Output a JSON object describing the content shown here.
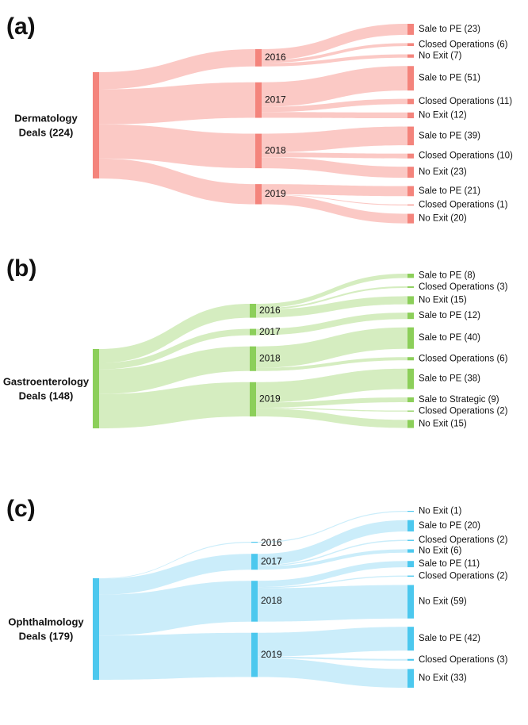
{
  "chart_data": [
    {
      "type": "sankey",
      "panel": "(a)",
      "source_line1": "Dermatology",
      "source_line2": "Deals (224)",
      "source_value": 224,
      "colors": {
        "node": "#f4847c",
        "link": "#fbc6c2"
      },
      "years": [
        {
          "label": "2016",
          "value": 36,
          "outcomes": [
            {
              "label": "Sale to PE (23)",
              "value": 23
            },
            {
              "label": "Closed Operations (6)",
              "value": 6
            },
            {
              "label": "No Exit (7)",
              "value": 7
            }
          ]
        },
        {
          "label": "2017",
          "value": 74,
          "outcomes": [
            {
              "label": "Sale to PE (51)",
              "value": 51
            },
            {
              "label": "Closed Operations (11)",
              "value": 11
            },
            {
              "label": "No Exit (12)",
              "value": 12
            }
          ]
        },
        {
          "label": "2018",
          "value": 72,
          "outcomes": [
            {
              "label": "Sale to PE (39)",
              "value": 39
            },
            {
              "label": "Closed Operations (10)",
              "value": 10
            },
            {
              "label": "No Exit (23)",
              "value": 23
            }
          ]
        },
        {
          "label": "2019",
          "value": 42,
          "outcomes": [
            {
              "label": "Sale to PE (21)",
              "value": 21
            },
            {
              "label": "Closed Operations (1)",
              "value": 1
            },
            {
              "label": "No Exit (20)",
              "value": 20
            }
          ]
        }
      ]
    },
    {
      "type": "sankey",
      "panel": "(b)",
      "source_line1": "Gastroenterology",
      "source_line2": "Deals (148)",
      "source_value": 148,
      "colors": {
        "node": "#8ccf5a",
        "link": "#d3ecbd"
      },
      "years": [
        {
          "label": "2016",
          "value": 26,
          "outcomes": [
            {
              "label": "Sale to PE (8)",
              "value": 8
            },
            {
              "label": "Closed Operations (3)",
              "value": 3
            },
            {
              "label": "No Exit (15)",
              "value": 15
            }
          ]
        },
        {
          "label": "2017",
          "value": 12,
          "outcomes": [
            {
              "label": "Sale to PE (12)",
              "value": 12
            }
          ]
        },
        {
          "label": "2018",
          "value": 46,
          "outcomes": [
            {
              "label": "Sale to PE (40)",
              "value": 40
            },
            {
              "label": "Closed Operations (6)",
              "value": 6
            }
          ]
        },
        {
          "label": "2019",
          "value": 64,
          "outcomes": [
            {
              "label": "Sale to PE (38)",
              "value": 38
            },
            {
              "label": "Sale to Strategic (9)",
              "value": 9
            },
            {
              "label": "Closed Operations (2)",
              "value": 2
            },
            {
              "label": "No Exit (15)",
              "value": 15
            }
          ]
        }
      ]
    },
    {
      "type": "sankey",
      "panel": "(c)",
      "source_line1": "Ophthalmology",
      "source_line2": "Deals (179)",
      "source_value": 179,
      "colors": {
        "node": "#4cc8ee",
        "link": "#c8ecfa"
      },
      "years": [
        {
          "label": "2016",
          "value": 1,
          "outcomes": [
            {
              "label": "No Exit (1)",
              "value": 1
            }
          ]
        },
        {
          "label": "2017",
          "value": 28,
          "outcomes": [
            {
              "label": "Sale to PE (20)",
              "value": 20
            },
            {
              "label": "Closed Operations (2)",
              "value": 2
            },
            {
              "label": "No Exit (6)",
              "value": 6
            }
          ]
        },
        {
          "label": "2018",
          "value": 72,
          "outcomes": [
            {
              "label": "Sale to PE (11)",
              "value": 11
            },
            {
              "label": "Closed Operations (2)",
              "value": 2
            },
            {
              "label": "No Exit (59)",
              "value": 59
            }
          ]
        },
        {
          "label": "2019",
          "value": 78,
          "outcomes": [
            {
              "label": "Sale to PE (42)",
              "value": 42
            },
            {
              "label": "Closed Operations (3)",
              "value": 3
            },
            {
              "label": "No Exit (33)",
              "value": 33
            }
          ]
        }
      ]
    }
  ]
}
